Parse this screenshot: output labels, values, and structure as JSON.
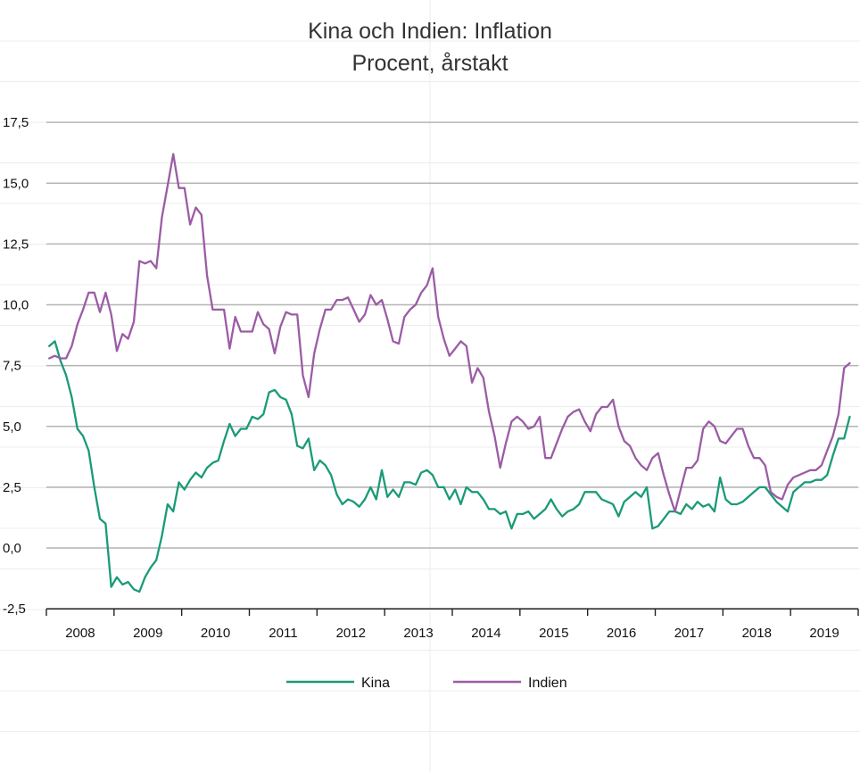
{
  "chart_data": {
    "type": "line",
    "title": "Kina och Indien: Inflation",
    "subtitle": "Procent, årstakt",
    "xlabel": "",
    "ylabel": "",
    "x_start": "2008-01",
    "x_end": "2019-12",
    "x_step": "month",
    "x_tick_labels": [
      "2008",
      "2009",
      "2010",
      "2011",
      "2012",
      "2013",
      "2014",
      "2015",
      "2016",
      "2017",
      "2018",
      "2019"
    ],
    "ylim": [
      -2.5,
      19
    ],
    "y_ticks": [
      -2.5,
      0,
      2.5,
      5,
      7.5,
      10,
      12.5,
      15,
      17.5
    ],
    "y_tick_labels": [
      "-2,5",
      "0,0",
      "2,5",
      "5,0",
      "7,5",
      "10,0",
      "12,5",
      "15,0",
      "17,5"
    ],
    "grid": true,
    "legend_position": "bottom",
    "series": [
      {
        "name": "Kina",
        "color": "#1a9a78",
        "values": [
          8.3,
          8.5,
          7.7,
          7.1,
          6.2,
          4.9,
          4.6,
          4.0,
          2.5,
          1.2,
          1.0,
          -1.6,
          -1.2,
          -1.5,
          -1.4,
          -1.7,
          -1.8,
          -1.2,
          -0.8,
          -0.5,
          0.5,
          1.8,
          1.5,
          2.7,
          2.4,
          2.8,
          3.1,
          2.9,
          3.3,
          3.5,
          3.6,
          4.4,
          5.1,
          4.6,
          4.9,
          4.9,
          5.4,
          5.3,
          5.5,
          6.4,
          6.5,
          6.2,
          6.1,
          5.5,
          4.2,
          4.1,
          4.5,
          3.2,
          3.6,
          3.4,
          3.0,
          2.2,
          1.8,
          2.0,
          1.9,
          1.7,
          2.0,
          2.5,
          2.0,
          3.2,
          2.1,
          2.4,
          2.1,
          2.7,
          2.7,
          2.6,
          3.1,
          3.2,
          3.0,
          2.5,
          2.5,
          2.0,
          2.4,
          1.8,
          2.5,
          2.3,
          2.3,
          2.0,
          1.6,
          1.6,
          1.4,
          1.5,
          0.8,
          1.4,
          1.4,
          1.5,
          1.2,
          1.4,
          1.6,
          2.0,
          1.6,
          1.3,
          1.5,
          1.6,
          1.8,
          2.3,
          2.3,
          2.3,
          2.0,
          1.9,
          1.8,
          1.3,
          1.9,
          2.1,
          2.3,
          2.1,
          2.5,
          0.8,
          0.9,
          1.2,
          1.5,
          1.5,
          1.4,
          1.8,
          1.6,
          1.9,
          1.7,
          1.8,
          1.5,
          2.9,
          2.0,
          1.8,
          1.8,
          1.9,
          2.1,
          2.3,
          2.5,
          2.5,
          2.2,
          1.9,
          1.7,
          1.5,
          2.3,
          2.5,
          2.7,
          2.7,
          2.8,
          2.8,
          3.0,
          3.8,
          4.5,
          4.5,
          5.4
        ]
      },
      {
        "name": "Indien",
        "color": "#9b5ca5",
        "values": [
          7.8,
          7.9,
          7.8,
          7.8,
          8.3,
          9.2,
          9.8,
          10.5,
          10.5,
          9.7,
          10.5,
          9.6,
          8.1,
          8.8,
          8.6,
          9.3,
          11.8,
          11.7,
          11.8,
          11.5,
          13.6,
          14.9,
          16.2,
          14.8,
          14.8,
          13.3,
          14.0,
          13.7,
          11.2,
          9.8,
          9.8,
          9.8,
          8.2,
          9.5,
          8.9,
          8.9,
          8.9,
          9.7,
          9.2,
          9.0,
          8.0,
          9.1,
          9.7,
          9.6,
          9.6,
          7.1,
          6.2,
          8.0,
          9.0,
          9.8,
          9.8,
          10.2,
          10.2,
          10.3,
          9.8,
          9.3,
          9.6,
          10.4,
          10.0,
          10.2,
          9.4,
          8.5,
          8.4,
          9.5,
          9.8,
          10.0,
          10.5,
          10.8,
          11.5,
          9.5,
          8.6,
          7.9,
          8.2,
          8.5,
          8.3,
          6.8,
          7.4,
          7.0,
          5.6,
          4.6,
          3.3,
          4.3,
          5.2,
          5.4,
          5.2,
          4.9,
          5.0,
          5.4,
          3.7,
          3.7,
          4.3,
          4.9,
          5.4,
          5.6,
          5.7,
          5.2,
          4.8,
          5.5,
          5.8,
          5.8,
          6.1,
          5.0,
          4.4,
          4.2,
          3.7,
          3.4,
          3.2,
          3.7,
          3.9,
          3.0,
          2.2,
          1.5,
          2.4,
          3.3,
          3.3,
          3.6,
          4.9,
          5.2,
          5.0,
          4.4,
          4.3,
          4.6,
          4.9,
          4.9,
          4.2,
          3.7,
          3.7,
          3.4,
          2.3,
          2.1,
          2.0,
          2.6,
          2.9,
          3.0,
          3.1,
          3.2,
          3.2,
          3.4,
          4.0,
          4.6,
          5.5,
          7.4,
          7.6
        ]
      }
    ]
  }
}
